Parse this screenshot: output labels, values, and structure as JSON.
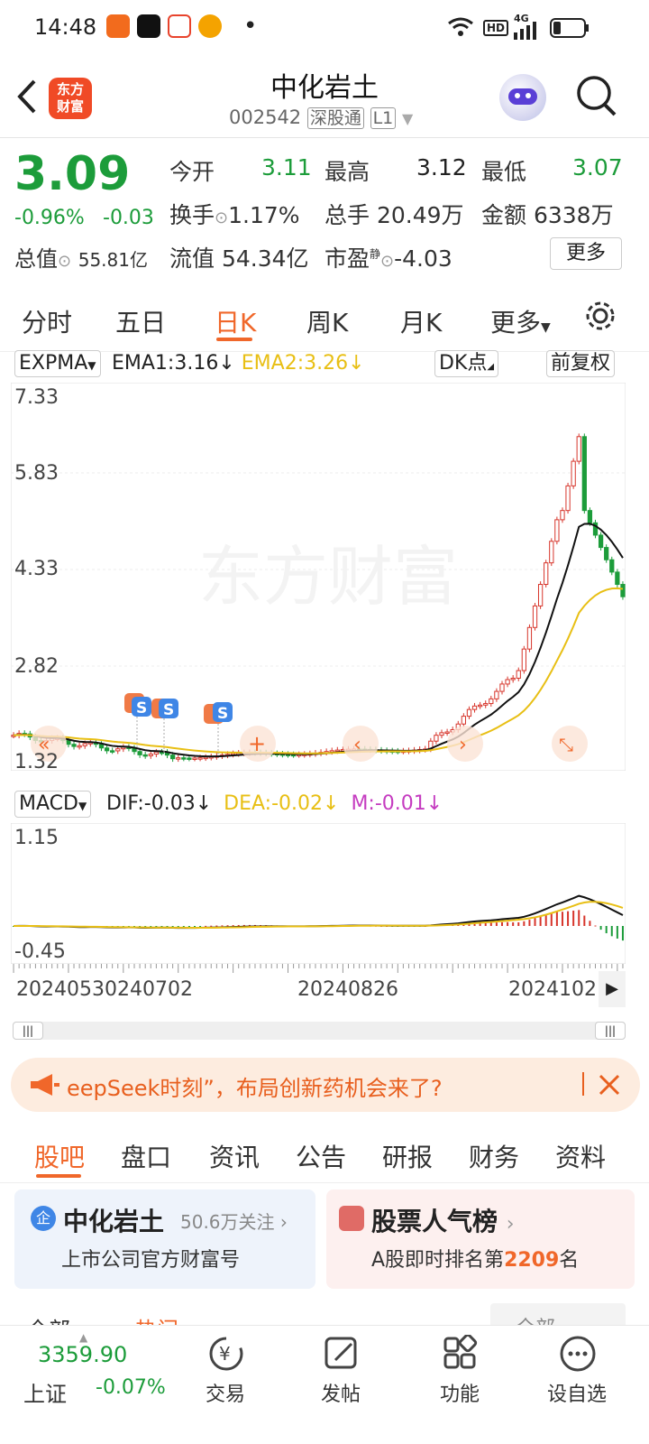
{
  "status_bar": {
    "time": "14:48",
    "dot": "•",
    "hd": "HD",
    "net": "4G"
  },
  "header": {
    "stock_name": "中化岩土",
    "stock_code": "002542",
    "market_tag": "深股通",
    "level_tag": "L1",
    "logo_text_1": "东方",
    "logo_text_2": "财富"
  },
  "quote": {
    "price": "3.09",
    "change_pct": "-0.96%",
    "change_amt": "-0.03",
    "total_value_label": "总值",
    "total_value": "55.81亿",
    "open_label": "今开",
    "open": "3.11",
    "high_label": "最高",
    "high": "3.12",
    "low_label": "最低",
    "low": "3.07",
    "turnover_label": "换手",
    "turnover": "1.17%",
    "volume_label": "总手",
    "volume": "20.49万",
    "amount_label": "金额",
    "amount": "6338万",
    "float_label": "流值",
    "float_value": "54.34亿",
    "pe_label": "市盈",
    "pe_tag": "静",
    "pe": "-4.03",
    "more_button": "更多"
  },
  "chart_tabs": [
    "分时",
    "五日",
    "日K",
    "周K",
    "月K",
    "更多"
  ],
  "active_tab_index": 2,
  "kline": {
    "indicator": "EXPMA",
    "ema1": "EMA1:3.16",
    "ema1_arrow": "↓",
    "ema2": "EMA2:3.26",
    "ema2_arrow": "↓",
    "dk_button": "DK点",
    "adjust_button": "前复权",
    "y_labels": [
      "7.33",
      "5.83",
      "4.33",
      "2.82",
      "1.32"
    ],
    "watermark": "东方财富"
  },
  "macd": {
    "indicator": "MACD",
    "dif": "DIF:-0.03",
    "dif_arrow": "↓",
    "dea": "DEA:-0.02",
    "dea_arrow": "↓",
    "m": "M:-0.01",
    "m_arrow": "↓",
    "y_high": "1.15",
    "y_low": "-0.45"
  },
  "x_axis": {
    "d1": "20240530",
    "d2": "240702",
    "d3": "20240826",
    "d4": "2024102"
  },
  "banner": {
    "text": "eepSeek时刻”，布局创新药机会来了?"
  },
  "bottom_tabs": [
    "股吧",
    "盘口",
    "资讯",
    "公告",
    "研报",
    "财务",
    "资料"
  ],
  "cards": {
    "left_title": "中化岩土",
    "left_follow": "50.6万关注",
    "left_sub": "上市公司官方财富号",
    "left_badge": "企",
    "right_title": "股票人气榜",
    "right_sub_prefix": "A股即时排名第",
    "right_rank": "2209",
    "right_sub_suffix": "名"
  },
  "partial_row": {
    "a": "全部",
    "b": "热门",
    "c": "全部"
  },
  "nav": {
    "index_value": "3359.90",
    "index_name": "上证",
    "index_change": "-0.07%",
    "trade": "交易",
    "post": "发帖",
    "function": "功能",
    "watchlist": "设自选"
  },
  "colors": {
    "up": "#d7352b",
    "down": "#1c9c3a",
    "accent": "#f0672a",
    "ema2": "#e8bf14",
    "macd_m": "#c53cc0"
  }
}
